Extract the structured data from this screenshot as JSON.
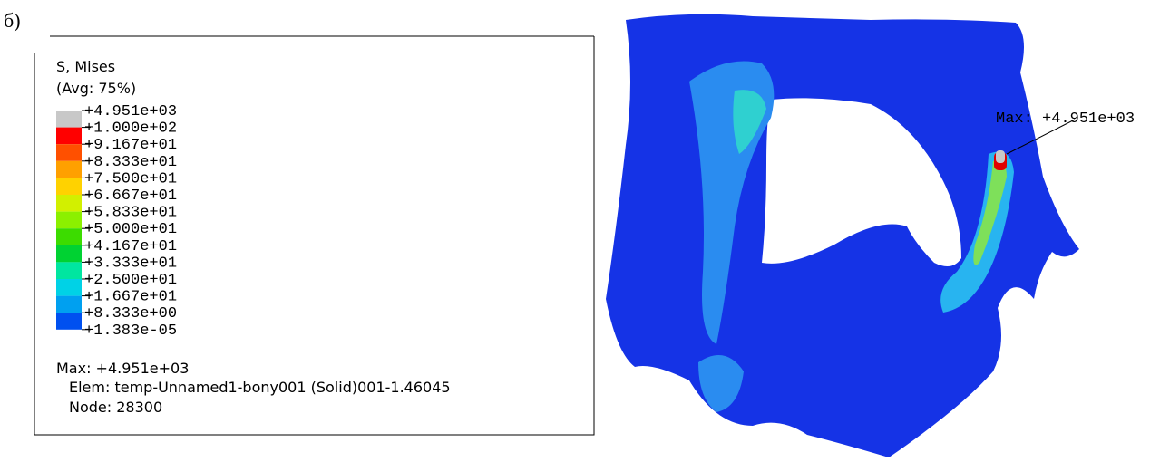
{
  "figure_label": "б)",
  "legend": {
    "title": "S, Mises",
    "subtitle": "(Avg: 75%)",
    "labels": [
      "+4.951e+03",
      "+1.000e+02",
      "+9.167e+01",
      "+8.333e+01",
      "+7.500e+01",
      "+6.667e+01",
      "+5.833e+01",
      "+5.000e+01",
      "+4.167e+01",
      "+3.333e+01",
      "+2.500e+01",
      "+1.667e+01",
      "+8.333e+00",
      "+1.383e-05"
    ],
    "max": "Max: +4.951e+03",
    "elem": "Elem: temp-Unnamed1-bony001 (Solid)001-1.46045",
    "node": "Node: 28300"
  },
  "model": {
    "max_annotation": "Max: +4.951e+03"
  }
}
